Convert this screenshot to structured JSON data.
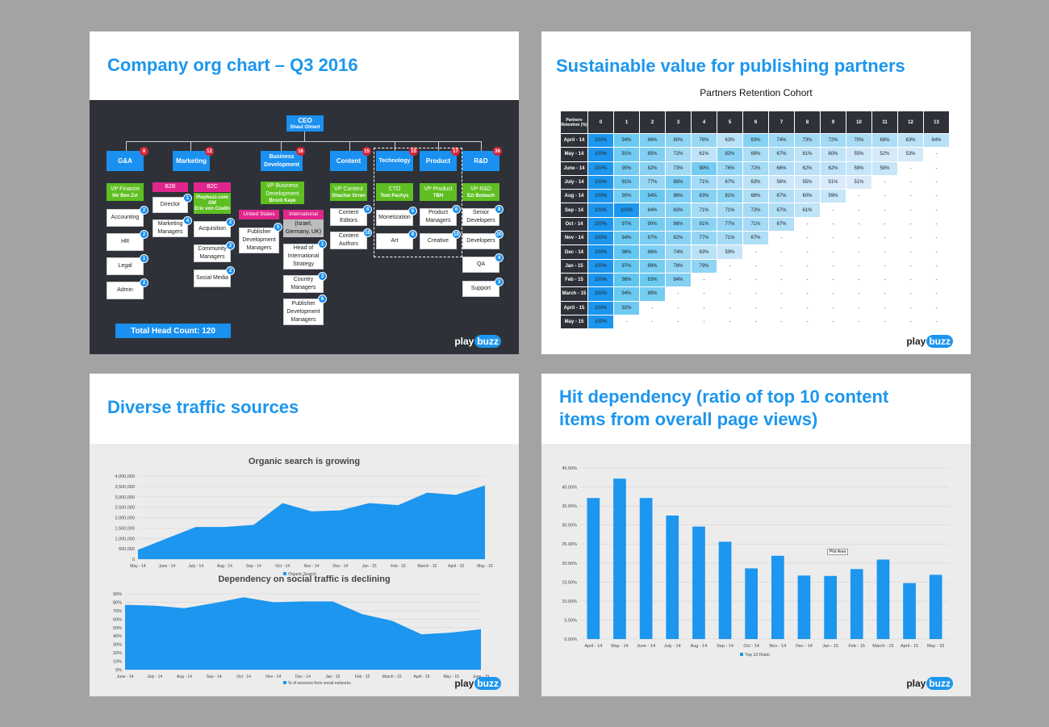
{
  "brand": {
    "logo_part1": "play",
    "logo_part2": "buzz",
    "accent": "#1c96ee",
    "dark_bg": "#2e3238"
  },
  "org_slide": {
    "title": "Company org chart – Q3 2016",
    "ceo": {
      "label": "CEO",
      "name": "Shaul Olmert"
    },
    "departments": [
      {
        "label": "G&A",
        "count": "8"
      },
      {
        "label": "Marketing",
        "count": "12"
      },
      {
        "label": "Business Development",
        "count": "16"
      },
      {
        "label": "Content",
        "count": "15"
      },
      {
        "label": "Technology",
        "count": "15"
      },
      {
        "label": "Product",
        "count": "17"
      },
      {
        "label": "R&D",
        "count": "36"
      }
    ],
    "vp_finance": {
      "title": "VP Finance",
      "name": "Nir Ben Zvi"
    },
    "vp_bd": {
      "title": "VP Business Development",
      "name": "Brock Kaye"
    },
    "vp_content": {
      "title": "VP Content",
      "name": "Shachar Orren"
    },
    "cto": {
      "title": "CTO",
      "name": "Tom Pachys"
    },
    "vp_product": {
      "title": "VP Product",
      "name": "TBH"
    },
    "vp_rd": {
      "title": "VP R&D",
      "name": "Ezi Boteach"
    },
    "b2b": "B2B",
    "b2c": {
      "title": "B2C",
      "line1": "Playbuzz.com GM",
      "name": "Eric von Coelln"
    },
    "us": "United States",
    "international": "International",
    "international_region": "(Israel, Germany, UK)",
    "ga_roles": [
      {
        "label": "Accounting",
        "n": "2"
      },
      {
        "label": "HR",
        "n": "2"
      },
      {
        "label": "Legal",
        "n": "1"
      },
      {
        "label": "Admin",
        "n": "2"
      }
    ],
    "b2b_roles": [
      {
        "label": "Director",
        "n": "1"
      },
      {
        "label": "Marketing Managers",
        "n": "4"
      }
    ],
    "b2c_roles": [
      {
        "label": "Acquisition",
        "n": "2"
      },
      {
        "label": "Community Managers",
        "n": "2"
      },
      {
        "label": "Social Media",
        "n": "2"
      }
    ],
    "us_roles": [
      {
        "label": "Publisher Development Managers",
        "n": "5"
      }
    ],
    "intl_roles": [
      {
        "label": "Head of International Strategy",
        "n": "1"
      },
      {
        "label": "Country Managers",
        "n": "3"
      },
      {
        "label": "Publisher Development Managers",
        "n": "6"
      }
    ],
    "content_roles": [
      {
        "label": "Content Editors",
        "n": "4"
      },
      {
        "label": "Content Authors",
        "n": "10"
      }
    ],
    "tech_roles": [
      {
        "label": "Monetization",
        "n": "6"
      },
      {
        "label": "Art",
        "n": "8"
      }
    ],
    "product_roles": [
      {
        "label": "Product Managers",
        "n": "6"
      },
      {
        "label": "Creative",
        "n": "10"
      }
    ],
    "rd_roles": [
      {
        "label": "Senior Developers",
        "n": "8"
      },
      {
        "label": "Developers",
        "n": "20"
      },
      {
        "label": "QA",
        "n": "4"
      },
      {
        "label": "Support",
        "n": "3"
      }
    ],
    "total": "Total Head Count: 120"
  },
  "cohort_slide": {
    "title": "Sustainable value for publishing partners",
    "table_title": "Partners Retention Cohort",
    "corner": "Partners Retention (%)",
    "columns": [
      "0",
      "1",
      "2",
      "3",
      "4",
      "5",
      "6",
      "7",
      "8",
      "9",
      "10",
      "11",
      "12",
      "13"
    ],
    "rows": [
      {
        "label": "April - 14",
        "values": [
          "100%",
          "94%",
          "86%",
          "80%",
          "76%",
          "63%",
          "83%",
          "74%",
          "73%",
          "72%",
          "70%",
          "68%",
          "63%",
          "64%"
        ]
      },
      {
        "label": "May - 14",
        "values": [
          "100%",
          "91%",
          "85%",
          "72%",
          "61%",
          "82%",
          "69%",
          "67%",
          "61%",
          "60%",
          "55%",
          "52%",
          "53%",
          "-"
        ]
      },
      {
        "label": "June - 14",
        "values": [
          "100%",
          "90%",
          "82%",
          "73%",
          "90%",
          "76%",
          "72%",
          "66%",
          "62%",
          "62%",
          "59%",
          "58%",
          "-",
          "-"
        ]
      },
      {
        "label": "July - 14",
        "values": [
          "100%",
          "91%",
          "77%",
          "88%",
          "71%",
          "67%",
          "63%",
          "56%",
          "55%",
          "51%",
          "51%",
          "-",
          "-",
          "-"
        ]
      },
      {
        "label": "Aug - 14",
        "values": [
          "100%",
          "90%",
          "94%",
          "86%",
          "83%",
          "81%",
          "68%",
          "67%",
          "60%",
          "59%",
          "-",
          "-",
          "-",
          "-"
        ]
      },
      {
        "label": "Sep - 14",
        "values": [
          "100%",
          "100%",
          "84%",
          "83%",
          "71%",
          "71%",
          "72%",
          "67%",
          "61%",
          "-",
          "-",
          "-",
          "-",
          "-"
        ]
      },
      {
        "label": "Oct - 14",
        "values": [
          "100%",
          "97%",
          "90%",
          "86%",
          "81%",
          "77%",
          "71%",
          "67%",
          "-",
          "-",
          "-",
          "-",
          "-",
          "-"
        ]
      },
      {
        "label": "Nov - 14",
        "values": [
          "100%",
          "94%",
          "87%",
          "82%",
          "77%",
          "71%",
          "67%",
          "-",
          "-",
          "-",
          "-",
          "-",
          "-",
          "-"
        ]
      },
      {
        "label": "Dec - 14",
        "values": [
          "100%",
          "96%",
          "86%",
          "74%",
          "63%",
          "59%",
          "-",
          "-",
          "-",
          "-",
          "-",
          "-",
          "-",
          "-"
        ]
      },
      {
        "label": "Jan - 15",
        "values": [
          "100%",
          "97%",
          "89%",
          "78%",
          "79%",
          "-",
          "-",
          "-",
          "-",
          "-",
          "-",
          "-",
          "-",
          "-"
        ]
      },
      {
        "label": "Feb - 15",
        "values": [
          "100%",
          "98%",
          "93%",
          "84%",
          "-",
          "-",
          "-",
          "-",
          "-",
          "-",
          "-",
          "-",
          "-",
          "-"
        ]
      },
      {
        "label": "March - 15",
        "values": [
          "100%",
          "94%",
          "89%",
          "-",
          "-",
          "-",
          "-",
          "-",
          "-",
          "-",
          "-",
          "-",
          "-",
          "-"
        ]
      },
      {
        "label": "April - 15",
        "values": [
          "100%",
          "92%",
          "-",
          "-",
          "-",
          "-",
          "-",
          "-",
          "-",
          "-",
          "-",
          "-",
          "-",
          "-"
        ]
      },
      {
        "label": "May - 15",
        "values": [
          "100%",
          "-",
          "-",
          "-",
          "-",
          "-",
          "-",
          "-",
          "-",
          "-",
          "-",
          "-",
          "-",
          "-"
        ]
      }
    ]
  },
  "traffic_slide": {
    "title": "Diverse traffic sources"
  },
  "hit_slide": {
    "title_line1": "Hit dependency (ratio of top 10 content",
    "title_line2": "items from overall page views)",
    "plot_area_label": "Plot Area"
  },
  "chart_data": [
    {
      "type": "area",
      "title": "Organic search is growing",
      "x": [
        "May - 14",
        "June - 14",
        "July - 14",
        "Aug - 14",
        "Sep - 14",
        "Oct - 14",
        "Nov - 14",
        "Dec - 14",
        "Jan - 15",
        "Feb - 15",
        "March - 15",
        "April - 15",
        "May - 15"
      ],
      "series": [
        {
          "name": "Organic Search",
          "values": [
            450000,
            1000000,
            1550000,
            1550000,
            1650000,
            2700000,
            2300000,
            2350000,
            2700000,
            2600000,
            3200000,
            3100000,
            3550000
          ]
        }
      ],
      "ylim": [
        0,
        4000000
      ],
      "yticks": [
        "4,000,000",
        "3,500,000",
        "3,000,000",
        "2,500,000",
        "2,000,000",
        "1,500,000",
        "1,000,000",
        "500,000",
        "0"
      ],
      "color": "#1c96ee"
    },
    {
      "type": "area",
      "title": "Dependency on social traffic is declining",
      "x": [
        "June - 14",
        "July - 14",
        "Aug - 14",
        "Sep - 14",
        "Oct - 14",
        "Nov - 14",
        "Dec - 14",
        "Jan - 15",
        "Feb - 15",
        "March - 15",
        "April - 15",
        "May - 15",
        "June - 15"
      ],
      "series": [
        {
          "name": "% of sessions from social networks",
          "values": [
            77,
            76,
            73,
            79,
            86,
            80,
            81,
            81,
            66,
            58,
            42,
            44,
            48
          ]
        }
      ],
      "ylim": [
        0,
        90
      ],
      "yticks": [
        "90%",
        "80%",
        "70%",
        "60%",
        "50%",
        "40%",
        "30%",
        "20%",
        "10%",
        "0%"
      ],
      "color": "#1c96ee"
    },
    {
      "type": "bar",
      "categories": [
        "April - 14",
        "May - 14",
        "June - 14",
        "July - 14",
        "Aug - 14",
        "Sep - 14",
        "Oct - 14",
        "Nov - 14",
        "Dec - 14",
        "Jan - 15",
        "Feb - 15",
        "March - 15",
        "April - 15",
        "May - 15"
      ],
      "series": [
        {
          "name": "Top 10 Ratio",
          "values": [
            37.1,
            42.2,
            37.1,
            32.5,
            29.6,
            25.6,
            18.6,
            21.9,
            16.7,
            16.6,
            18.4,
            20.9,
            14.7,
            16.9
          ]
        }
      ],
      "ylim": [
        0,
        45
      ],
      "yticks": [
        "45.00%",
        "40.00%",
        "35.00%",
        "30.00%",
        "25.00%",
        "20.00%",
        "15.00%",
        "10.00%",
        "5.00%",
        "0.00%"
      ],
      "color": "#1c96ee"
    }
  ]
}
